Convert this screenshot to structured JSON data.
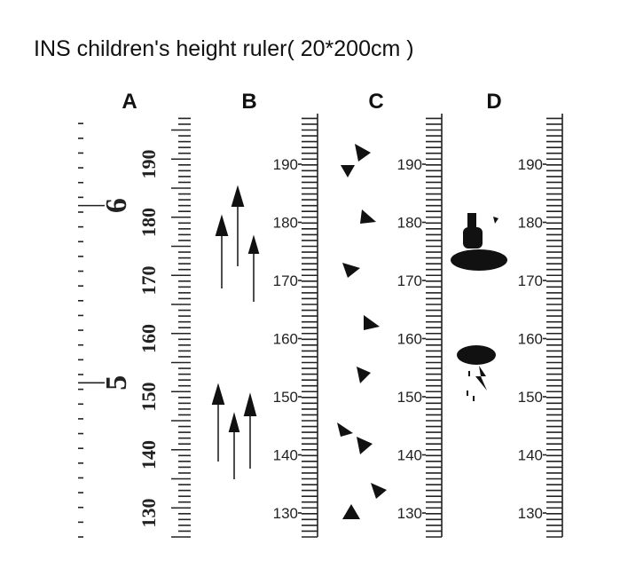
{
  "title": "INS children's height ruler( 20*200cm )",
  "rulers": [
    {
      "label": "A",
      "feet_labels": [
        6,
        5
      ],
      "cm_labels": [
        190,
        180,
        170,
        160,
        150,
        140,
        130
      ]
    },
    {
      "label": "B",
      "cm_labels": [
        190,
        180,
        170,
        160,
        150,
        140,
        130
      ]
    },
    {
      "label": "C",
      "cm_labels": [
        190,
        180,
        170,
        160,
        150,
        140,
        130
      ]
    },
    {
      "label": "D",
      "cm_labels": [
        190,
        180,
        170,
        160,
        150,
        140,
        130
      ]
    }
  ]
}
